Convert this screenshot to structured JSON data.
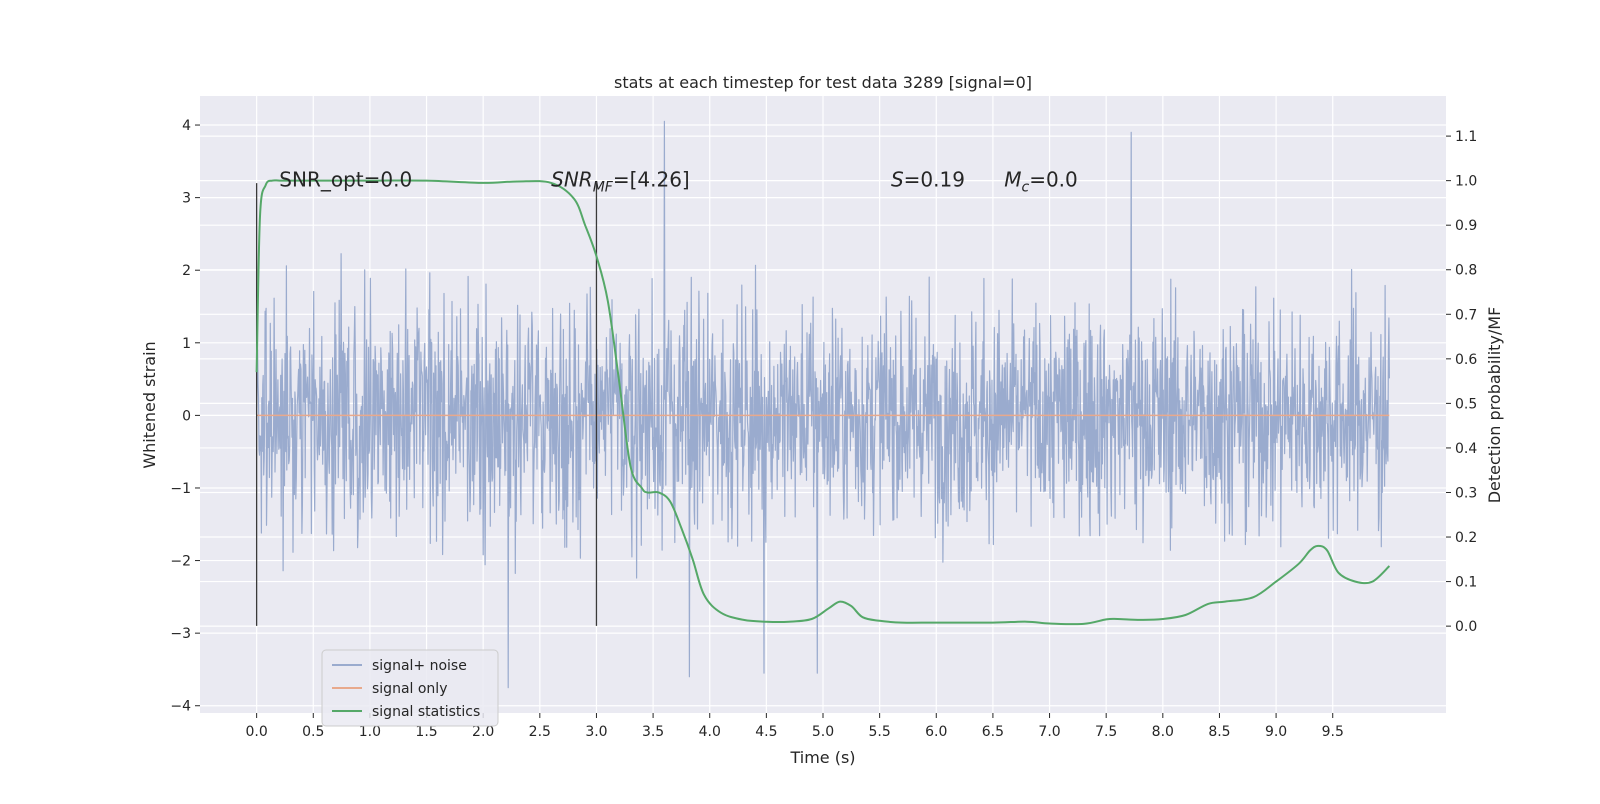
{
  "chart_data": {
    "type": "line",
    "title": "stats at each timestep for test data 3289 [signal=0]",
    "xlabel": "Time (s)",
    "ylabel": "Whitened strain",
    "ylabel_right": "Detection probability/MF",
    "xlim": [
      -0.5,
      10.5
    ],
    "ylim": [
      -4.1,
      4.4
    ],
    "ylim_right": [
      -0.195,
      1.19
    ],
    "grid": true,
    "x_ticks": [
      0.0,
      0.5,
      1.0,
      1.5,
      2.0,
      2.5,
      3.0,
      3.5,
      4.0,
      4.5,
      5.0,
      5.5,
      6.0,
      6.5,
      7.0,
      7.5,
      8.0,
      8.5,
      9.0,
      9.5
    ],
    "x_tick_labels": [
      "0.0",
      "0.5",
      "1.0",
      "1.5",
      "2.0",
      "2.5",
      "3.0",
      "3.5",
      "4.0",
      "4.5",
      "5.0",
      "5.5",
      "6.0",
      "6.5",
      "7.0",
      "7.5",
      "8.0",
      "8.5",
      "9.0",
      "9.5"
    ],
    "y_ticks": [
      4,
      3,
      2,
      1,
      0,
      -1,
      -2,
      -3,
      -4
    ],
    "y_tick_labels": [
      "4",
      "3",
      "2",
      "1",
      "0",
      "−1",
      "−2",
      "−3",
      "−4"
    ],
    "y_right_ticks": [
      1.1,
      1.0,
      0.9,
      0.8,
      0.7,
      0.6,
      0.5,
      0.4,
      0.3,
      0.2,
      0.1,
      0.0
    ],
    "y_right_tick_labels": [
      "1.1",
      "1.0",
      "0.9",
      "0.8",
      "0.7",
      "0.6",
      "0.5",
      "0.4",
      "0.3",
      "0.2",
      "0.1",
      "0.0"
    ],
    "legend_position": "lower-left",
    "series": [
      {
        "name": "signal+ noise",
        "color": "#9aabce",
        "axis": "left",
        "kind": "noise",
        "x_range": [
          0.0,
          10.0
        ],
        "envelope": [
          -3.7,
          4.05
        ],
        "peaks": [
          [
            3.6,
            4.05
          ],
          [
            7.72,
            3.9
          ],
          [
            2.22,
            -3.75
          ],
          [
            3.82,
            -3.6
          ],
          [
            4.95,
            -3.55
          ],
          [
            4.48,
            -3.55
          ]
        ]
      },
      {
        "name": "signal only",
        "color": "#e8a98c",
        "axis": "left",
        "x": [
          0.0,
          10.0
        ],
        "y": [
          0.0,
          0.0
        ]
      },
      {
        "name": "signal statistics",
        "color": "#55a868",
        "axis": "right",
        "x": [
          0.0,
          0.03,
          0.08,
          0.14,
          0.2,
          0.3,
          0.5,
          1.0,
          1.5,
          2.0,
          2.3,
          2.6,
          2.8,
          2.9,
          3.0,
          3.1,
          3.2,
          3.3,
          3.4,
          3.45,
          3.55,
          3.65,
          3.75,
          3.85,
          3.95,
          4.1,
          4.3,
          4.5,
          4.7,
          4.9,
          5.05,
          5.15,
          5.25,
          5.35,
          5.5,
          5.7,
          6.0,
          6.5,
          6.8,
          7.0,
          7.3,
          7.5,
          7.6,
          7.8,
          8.0,
          8.2,
          8.4,
          8.55,
          8.8,
          9.0,
          9.2,
          9.3,
          9.37,
          9.45,
          9.55,
          9.7,
          9.85,
          10.0
        ],
        "y": [
          0.57,
          0.92,
          0.99,
          1.0,
          1.0,
          1.0,
          1.0,
          1.0,
          1.0,
          0.995,
          0.998,
          0.995,
          0.96,
          0.9,
          0.83,
          0.73,
          0.55,
          0.36,
          0.31,
          0.3,
          0.3,
          0.28,
          0.22,
          0.15,
          0.07,
          0.03,
          0.014,
          0.01,
          0.01,
          0.016,
          0.04,
          0.055,
          0.045,
          0.02,
          0.012,
          0.008,
          0.008,
          0.008,
          0.01,
          0.006,
          0.005,
          0.015,
          0.016,
          0.014,
          0.016,
          0.025,
          0.05,
          0.055,
          0.065,
          0.1,
          0.14,
          0.17,
          0.18,
          0.17,
          0.12,
          0.1,
          0.1,
          0.135
        ]
      }
    ],
    "annotations": [
      {
        "text": "SNR_opt=0.0",
        "x": 0.2,
        "y": 3.15
      },
      {
        "text": "SNR",
        "sub": "MF",
        "suffix": "=[4.26]",
        "x": 2.6,
        "y": 3.15
      },
      {
        "text": "S",
        "suffix": "=0.19",
        "x": 5.6,
        "y": 3.15
      },
      {
        "text": "M",
        "sub": "c",
        "suffix": "=0.0",
        "x": 6.6,
        "y": 3.15
      }
    ],
    "vlines": [
      {
        "x": 0.0,
        "y_range": [
          -2.9,
          3.2
        ]
      },
      {
        "x": 3.0,
        "y_range": [
          -2.9,
          3.2
        ]
      }
    ]
  }
}
